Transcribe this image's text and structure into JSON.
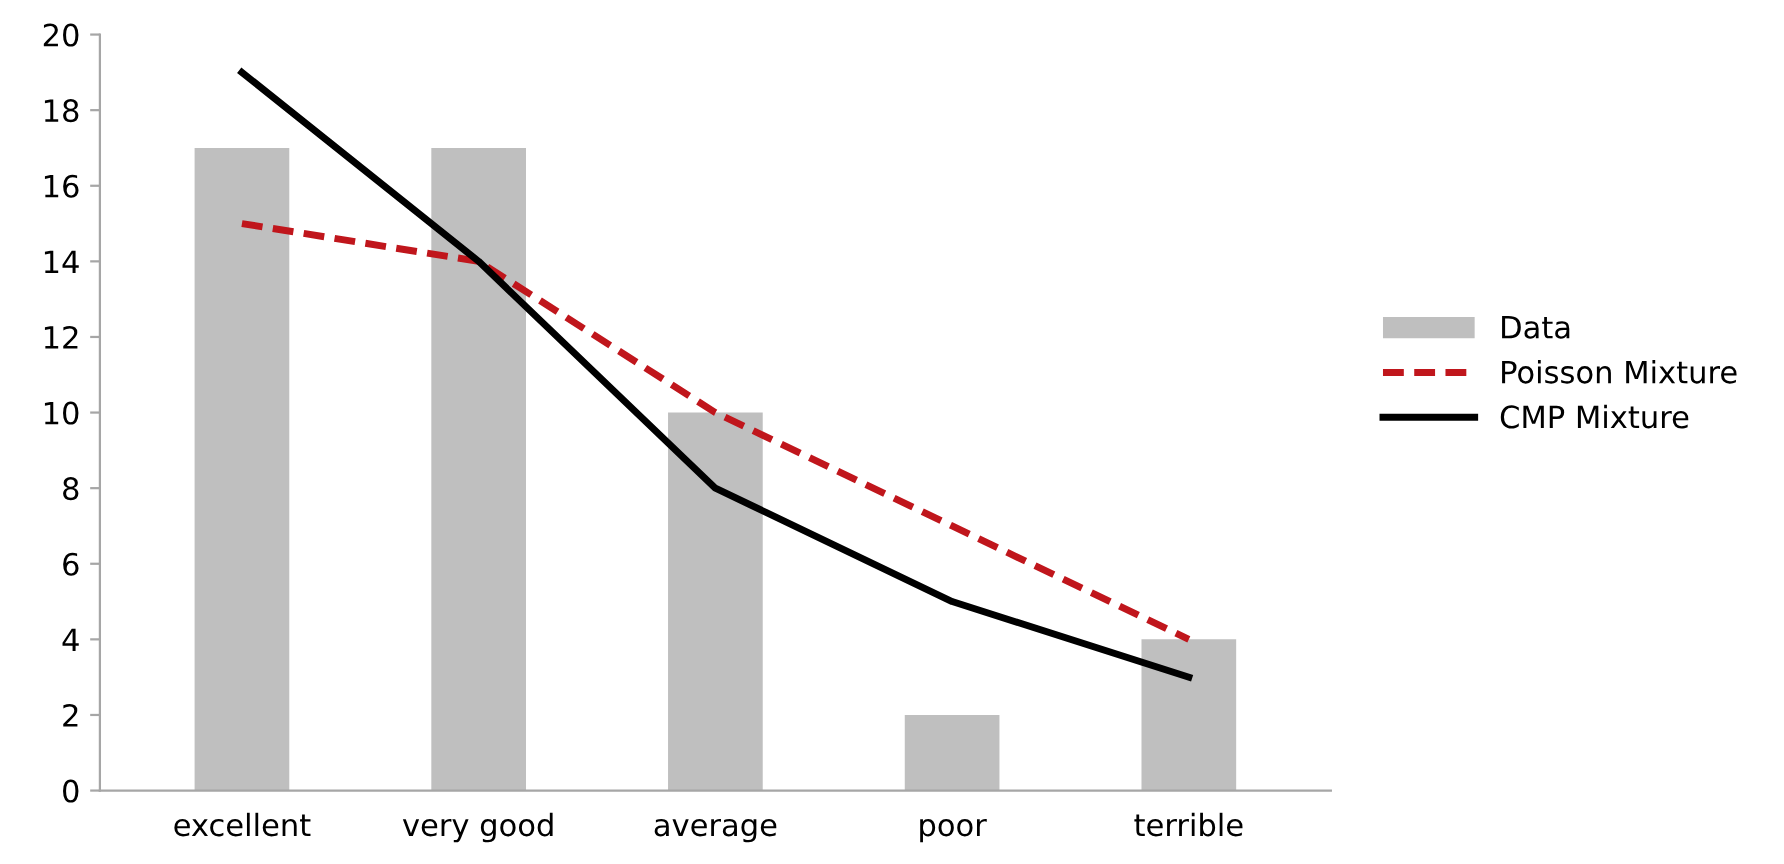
{
  "chart_data": {
    "type": "bar",
    "categories": [
      "excellent",
      "very good",
      "average",
      "poor",
      "terrible"
    ],
    "series": [
      {
        "name": "Data",
        "color": "#bfbfbf",
        "values": [
          17,
          17,
          10,
          2,
          4
        ]
      },
      {
        "name": "Poisson Mixture",
        "type": "line",
        "color": "#c0161c",
        "line_style": "dashed",
        "values": [
          15,
          14,
          10,
          7,
          4
        ]
      },
      {
        "name": "CMP Mixture",
        "type": "line",
        "color": "#000000",
        "line_style": "solid",
        "values": [
          19,
          14,
          8,
          5,
          3
        ]
      }
    ],
    "ylim": [
      0,
      20
    ],
    "yticks": [
      0,
      2,
      4,
      6,
      8,
      10,
      12,
      14,
      16,
      18,
      20
    ],
    "grid": false,
    "legend": "right",
    "marker": "none"
  }
}
